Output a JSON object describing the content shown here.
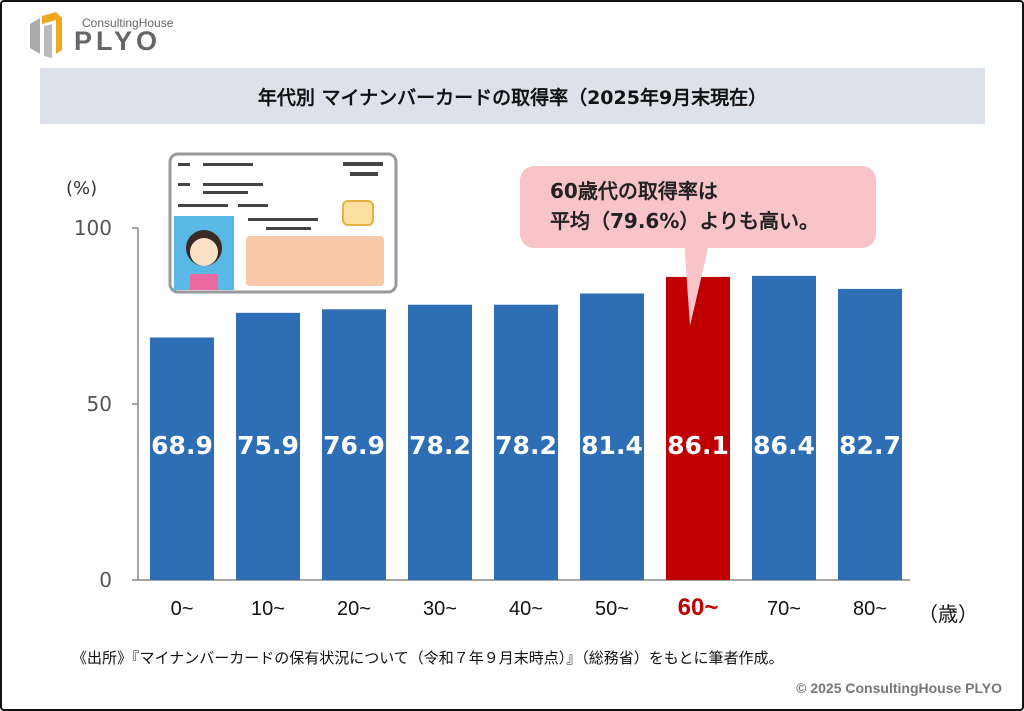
{
  "logo": {
    "small": "ConsultingHouse",
    "big": "PLYO"
  },
  "title": "年代別 マイナンバーカードの取得率（2025年9月末現在）",
  "callout": {
    "line1": "60歳代の取得率は",
    "line2": "平均（79.6%）よりも高い。"
  },
  "source": "《出所》『マイナンバーカードの保有状況について（令和７年９月末時点）』（総務省）をもとに筆者作成。",
  "copyright": "© 2025 ConsultingHouse PLYO",
  "colors": {
    "bar": "#2e6eb5",
    "highlight": "#c00000",
    "title_bg": "#dde1e8",
    "callout_bg": "#f9c4c8"
  },
  "chart_data": {
    "type": "bar",
    "title": "年代別 マイナンバーカードの取得率（2025年9月末現在）",
    "ylabel": "(%)",
    "xlabel": "（歳）",
    "ylim": [
      0,
      100
    ],
    "yticks": [
      "0",
      "50",
      "100"
    ],
    "categories": [
      "0~",
      "10~",
      "20~",
      "30~",
      "40~",
      "50~",
      "60~",
      "70~",
      "80~"
    ],
    "values": [
      68.9,
      75.9,
      76.9,
      78.2,
      78.2,
      81.4,
      86.1,
      86.4,
      82.7
    ],
    "highlight_index": 6,
    "grid": false,
    "legend": "none"
  }
}
